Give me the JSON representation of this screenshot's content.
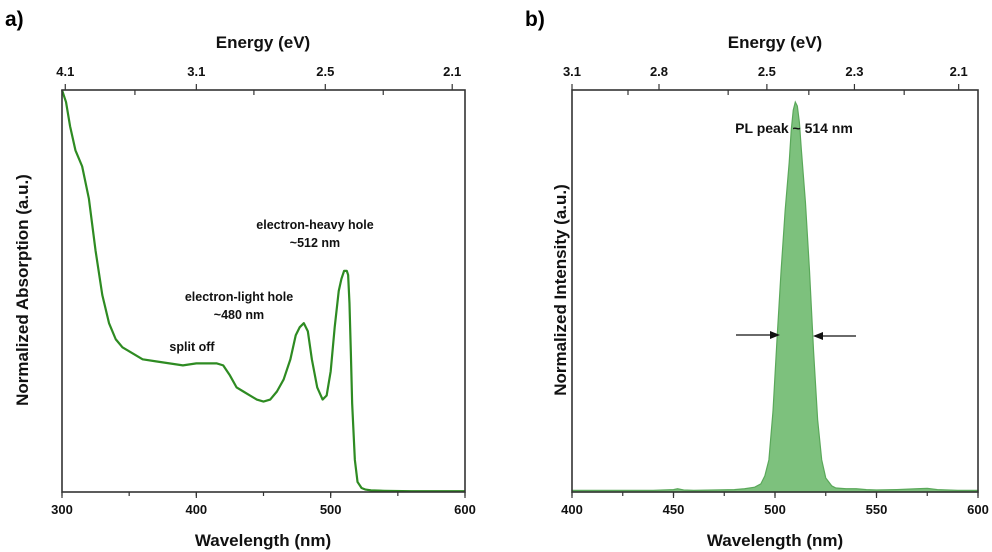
{
  "panels": {
    "a": {
      "label": "a)",
      "top_axis_title": "Energy (eV)",
      "top_ticks": [
        "4.1",
        "3.1",
        "2.5",
        "2.1"
      ],
      "bottom_axis_title": "Wavelength (nm)",
      "bottom_ticks": [
        "300",
        "400",
        "500",
        "600"
      ],
      "y_axis_title": "Normalized Absorption (a.u.)",
      "annotations": {
        "split_off": "split off",
        "light_hole_line1": "electron-light hole",
        "light_hole_line2": "~480 nm",
        "heavy_hole_line1": "electron-heavy hole",
        "heavy_hole_line2": "~512 nm"
      }
    },
    "b": {
      "label": "b)",
      "top_axis_title": "Energy (eV)",
      "top_ticks": [
        "3.1",
        "2.8",
        "2.5",
        "2.3",
        "2.1"
      ],
      "bottom_axis_title": "Wavelength (nm)",
      "bottom_ticks": [
        "400",
        "450",
        "500",
        "550",
        "600"
      ],
      "y_axis_title": "Normalized Intensity (a.u.)",
      "annotations": {
        "pl_peak": "PL peak ~  514 nm"
      }
    }
  },
  "chart_data": [
    {
      "type": "line",
      "panel": "a",
      "xlabel": "Wavelength (nm)",
      "ylabel": "Normalized Absorption (a.u.)",
      "top_xlabel": "Energy (eV)",
      "xlim": [
        300,
        600
      ],
      "ylim": [
        0,
        1
      ],
      "color": "#2e8b22",
      "series": [
        {
          "x": [
            300,
            303,
            306,
            310,
            315,
            320,
            325,
            330,
            335,
            340,
            345,
            350,
            360,
            370,
            380,
            390,
            400,
            410,
            415,
            420,
            425,
            430,
            435,
            440,
            445,
            450,
            455,
            460,
            465,
            470,
            474,
            477,
            480,
            483,
            486,
            490,
            494,
            497,
            500,
            503,
            506,
            508,
            510,
            512,
            513,
            514,
            515,
            516,
            518,
            520,
            523,
            526,
            530,
            540,
            560,
            580,
            600
          ],
          "y": [
            1.0,
            0.97,
            0.91,
            0.85,
            0.81,
            0.73,
            0.6,
            0.49,
            0.42,
            0.38,
            0.36,
            0.35,
            0.33,
            0.325,
            0.32,
            0.315,
            0.32,
            0.32,
            0.32,
            0.315,
            0.29,
            0.26,
            0.25,
            0.24,
            0.23,
            0.225,
            0.23,
            0.25,
            0.28,
            0.33,
            0.39,
            0.41,
            0.42,
            0.4,
            0.33,
            0.26,
            0.23,
            0.24,
            0.3,
            0.41,
            0.5,
            0.53,
            0.55,
            0.55,
            0.54,
            0.47,
            0.35,
            0.22,
            0.08,
            0.025,
            0.01,
            0.006,
            0.004,
            0.003,
            0.002,
            0.002,
            0.002
          ]
        }
      ],
      "annotations": [
        "split off",
        "electron-light hole ~480 nm",
        "electron-heavy hole ~512 nm"
      ]
    },
    {
      "type": "area",
      "panel": "b",
      "xlabel": "Wavelength (nm)",
      "ylabel": "Normalized Intensity (a.u.)",
      "top_xlabel": "Energy (eV)",
      "xlim": [
        400,
        600
      ],
      "ylim": [
        0,
        1
      ],
      "color": "#6fba6f",
      "series": [
        {
          "x": [
            400,
            420,
            440,
            450,
            452,
            455,
            460,
            470,
            480,
            485,
            490,
            493,
            495,
            497,
            499,
            501,
            503,
            505,
            507,
            508,
            509,
            510,
            511,
            512,
            513,
            515,
            517,
            519,
            521,
            523,
            525,
            528,
            530,
            535,
            540,
            545,
            550,
            560,
            570,
            575,
            580,
            590,
            600
          ],
          "y": [
            0.004,
            0.004,
            0.004,
            0.006,
            0.008,
            0.005,
            0.004,
            0.005,
            0.006,
            0.008,
            0.012,
            0.02,
            0.04,
            0.08,
            0.2,
            0.38,
            0.55,
            0.7,
            0.82,
            0.9,
            0.95,
            0.97,
            0.96,
            0.92,
            0.85,
            0.72,
            0.55,
            0.35,
            0.18,
            0.08,
            0.035,
            0.015,
            0.01,
            0.008,
            0.008,
            0.006,
            0.005,
            0.006,
            0.008,
            0.009,
            0.006,
            0.004,
            0.004
          ]
        }
      ],
      "annotations": [
        "PL peak ~  514 nm"
      ]
    }
  ]
}
